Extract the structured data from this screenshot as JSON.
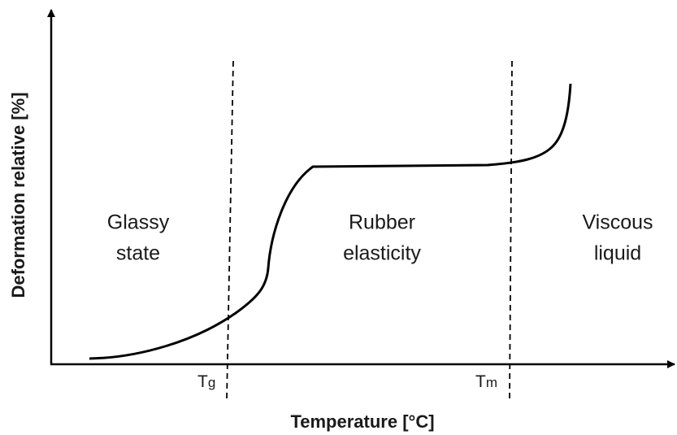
{
  "axes": {
    "x_label": "Temperature [°C]",
    "y_label": "Deformation relative [%]"
  },
  "regions": [
    {
      "lines": [
        "Glassy",
        "state"
      ]
    },
    {
      "lines": [
        "Rubber",
        "elasticity"
      ]
    },
    {
      "lines": [
        "Viscous",
        "liquid"
      ]
    }
  ],
  "markers": [
    {
      "symbol": "T",
      "subscript": "g"
    },
    {
      "symbol": "T",
      "subscript": "m"
    }
  ]
}
